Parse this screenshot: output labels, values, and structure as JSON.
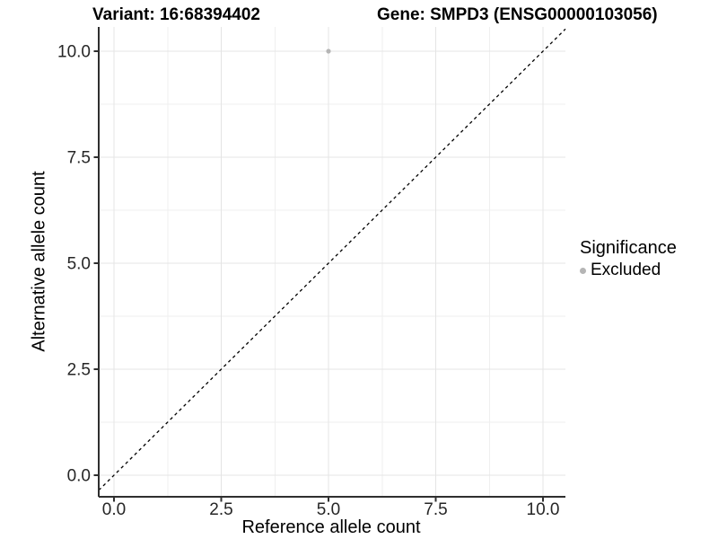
{
  "figure": {
    "title_left": "Variant: 16:68394402",
    "title_right": "Gene: SMPD3 (ENSG00000103056)"
  },
  "chart_data": {
    "type": "scatter",
    "title": "Variant: 16:68394402  /  Gene: SMPD3 (ENSG00000103056)",
    "xlabel": "Reference allele count",
    "ylabel": "Alternative allele count",
    "xticks": [
      0.0,
      2.5,
      5.0,
      7.5,
      10.0
    ],
    "yticks": [
      0.0,
      2.5,
      5.0,
      7.5,
      10.0
    ],
    "tick_decimals": 1,
    "xlim": [
      -0.36,
      10.52
    ],
    "ylim": [
      -0.51,
      10.57
    ],
    "grid": "major+minor",
    "points": [
      {
        "x": 5,
        "y": 10,
        "group": "Excluded"
      }
    ],
    "reference_line": {
      "slope": 1,
      "intercept": 0,
      "style": "dashed"
    },
    "legend": {
      "title": "Significance",
      "position": "right",
      "entries": [
        {
          "label": "Excluded",
          "color": "#b5b5b5"
        }
      ]
    },
    "colors": {
      "point": "#b5b5b5",
      "grid_major": "#e4e4e4",
      "grid_minor": "#efefef",
      "axis_line": "#2f2f2f",
      "tick_label": "#262626",
      "reference_line": "#000000",
      "background": "#ffffff"
    }
  }
}
